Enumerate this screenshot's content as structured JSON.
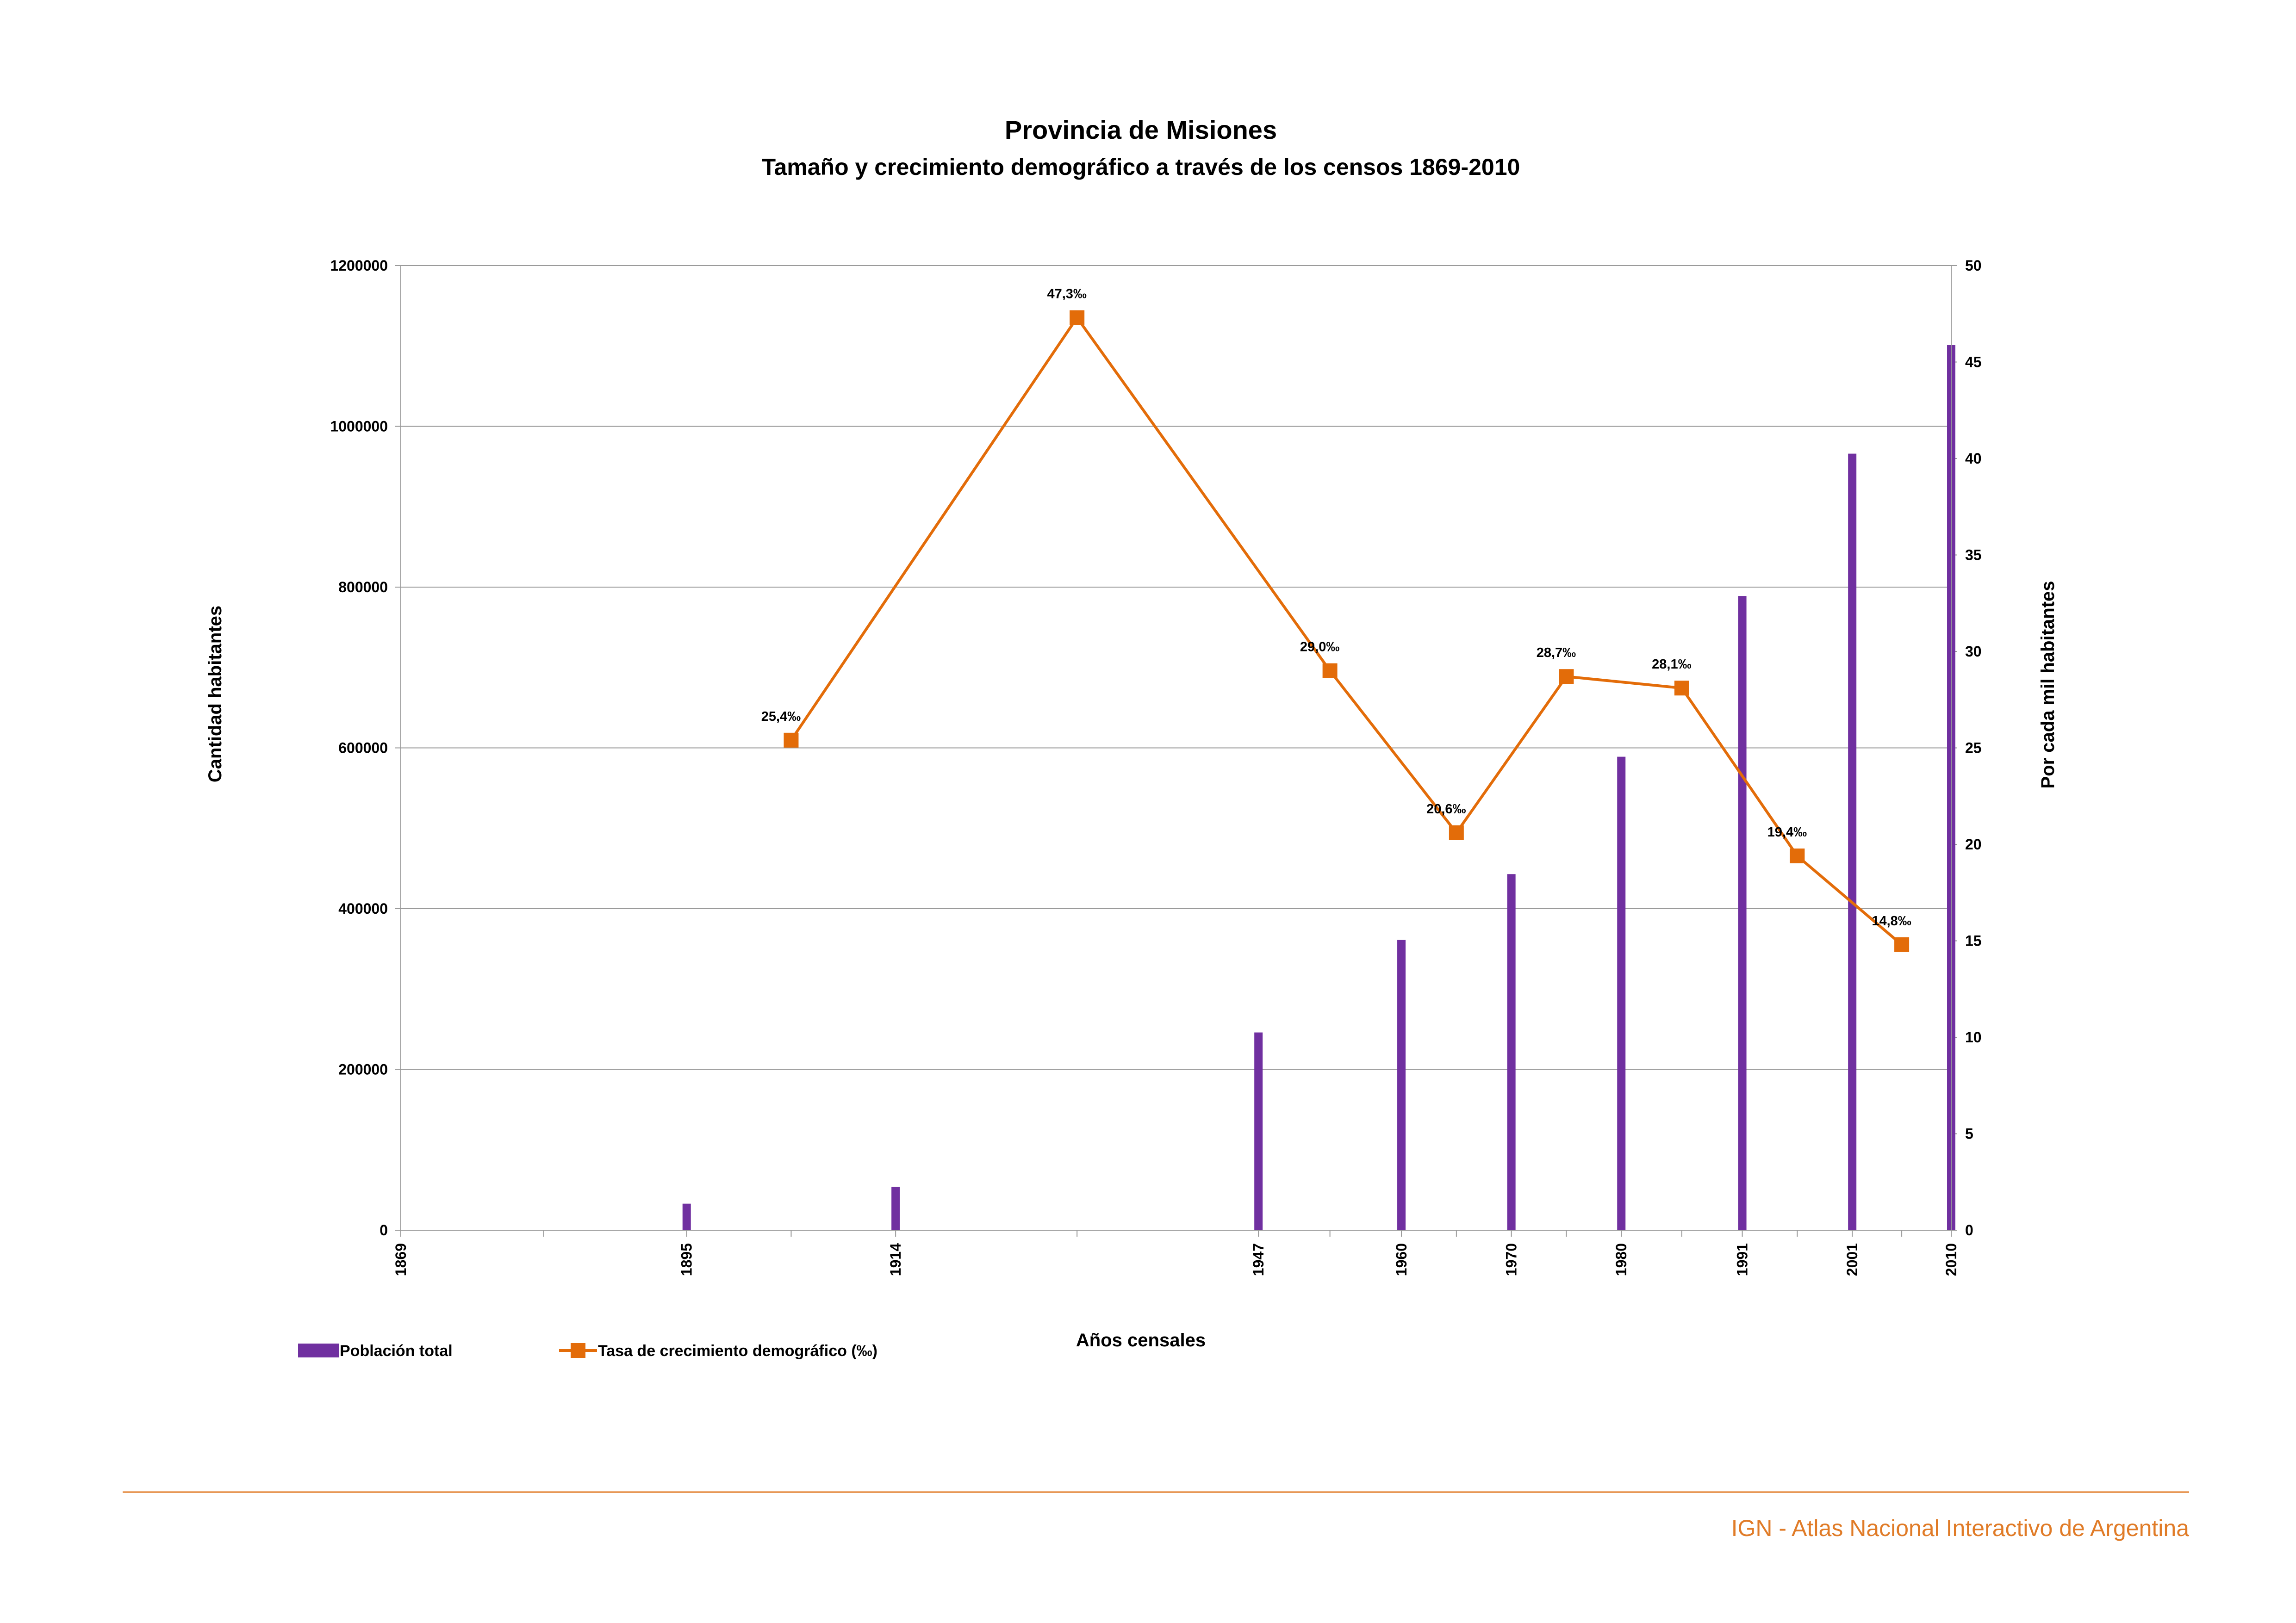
{
  "title": "Provincia de Misiones",
  "subtitle": "Tamaño y crecimiento demográfico a través de los censos 1869-2010",
  "chart_data": {
    "type": "bar",
    "title": "Provincia de Misiones",
    "subtitle": "Tamaño y crecimiento demográfico a través de los censos 1869-2010",
    "xlabel": "Años censales",
    "ylabel": "Cantidad habitantes",
    "y2label": "Por cada mil habitantes",
    "x_start": 1869,
    "x_end": 2010,
    "year_ticks": [
      "1869",
      "1895",
      "1914",
      "1947",
      "1960",
      "1970",
      "1980",
      "1991",
      "2001",
      "2010"
    ],
    "ylim": [
      0,
      1200000
    ],
    "yticks": [
      0,
      200000,
      400000,
      600000,
      800000,
      1000000,
      1200000
    ],
    "y2lim": [
      0,
      50
    ],
    "y2ticks": [
      0,
      5,
      10,
      15,
      20,
      25,
      30,
      35,
      40,
      45,
      50
    ],
    "grid": true,
    "legend_position": "bottom-left",
    "series": [
      {
        "name": "Población total",
        "kind": "bar",
        "axis": "left",
        "color": "#7030a0",
        "x": [
          1895,
          1914,
          1947,
          1960,
          1970,
          1980,
          1991,
          2001,
          2010
        ],
        "values": [
          33000,
          54000,
          246000,
          361000,
          443000,
          589000,
          789000,
          966000,
          1101000
        ]
      },
      {
        "name": "Tasa de crecimiento demográfico (‰)",
        "kind": "line",
        "axis": "right",
        "color": "#e36c09",
        "x": [
          1904.5,
          1930.5,
          1953.5,
          1965,
          1975,
          1985.5,
          1996,
          2005.5
        ],
        "values": [
          25.4,
          47.3,
          29.0,
          20.6,
          28.7,
          28.1,
          19.4,
          14.8
        ],
        "labels": [
          "25,4‰",
          "47,3‰",
          "29,0‰",
          "20,6‰",
          "28,7‰",
          "28,1‰",
          "19,4‰",
          "14,8‰"
        ]
      }
    ]
  },
  "legend": {
    "bar_label": "Población total",
    "line_label": "Tasa de crecimiento demográfico (‰)"
  },
  "footer": {
    "text": "IGN - Atlas Nacional Interactivo de Argentina",
    "color": "#e07b27"
  }
}
